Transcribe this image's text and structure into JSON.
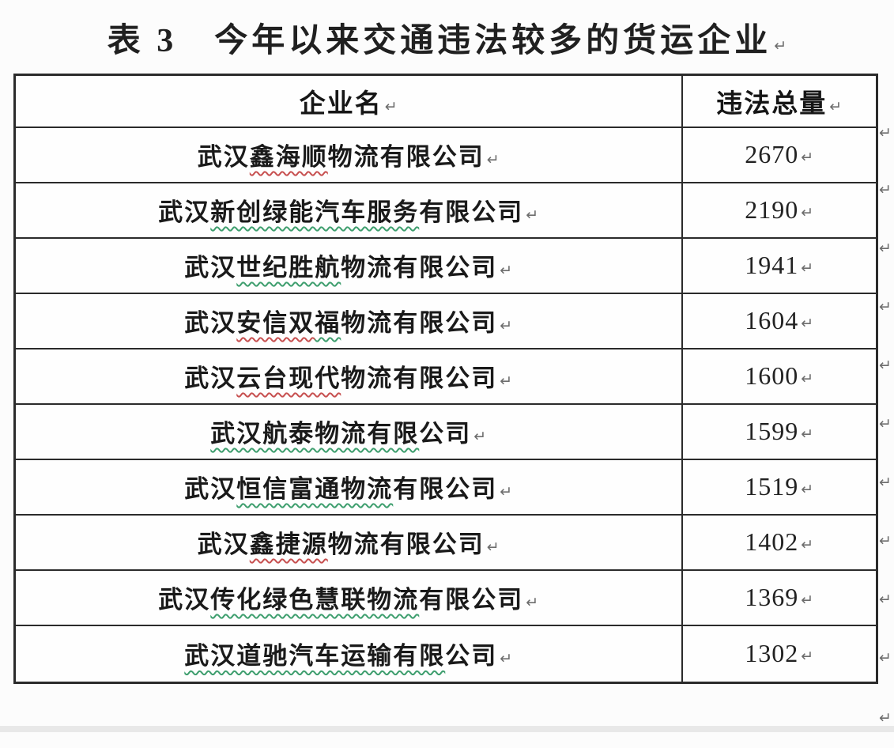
{
  "page": {
    "background": "#fcfcfc",
    "border_color": "#2b2b2b"
  },
  "marks": {
    "pilcrow": "↵",
    "color": "#6d6d6d"
  },
  "spellcheck_colors": {
    "red": "#c75050",
    "green": "#3e9e6e"
  },
  "title": {
    "label": "表 3　今年以来交通违法较多的货运企业"
  },
  "table": {
    "headers": [
      {
        "label": "企业名"
      },
      {
        "label": "违法总量"
      }
    ],
    "rows": [
      {
        "value": "2670",
        "name": "武汉鑫海顺物流有限公司",
        "name_segments": [
          {
            "text": "武汉",
            "wavy": null
          },
          {
            "text": "鑫海顺",
            "wavy": "#c75050"
          },
          {
            "text": "物流有限公司",
            "wavy": null
          }
        ]
      },
      {
        "value": "2190",
        "name": "武汉新创绿能汽车服务有限公司",
        "name_segments": [
          {
            "text": "武汉",
            "wavy": null
          },
          {
            "text": "新创绿能汽车服务",
            "wavy": "#3e9e6e"
          },
          {
            "text": "有限公司",
            "wavy": null
          }
        ]
      },
      {
        "value": "1941",
        "name": "武汉世纪胜航物流有限公司",
        "name_segments": [
          {
            "text": "武汉",
            "wavy": null
          },
          {
            "text": "世纪胜航",
            "wavy": "#3e9e6e"
          },
          {
            "text": "物流有限公司",
            "wavy": null
          }
        ]
      },
      {
        "value": "1604",
        "name": "武汉安信双福物流有限公司",
        "name_segments": [
          {
            "text": "武汉",
            "wavy": null
          },
          {
            "text": "安信双",
            "wavy": "#c75050"
          },
          {
            "text": "福",
            "wavy": "#3e9e6e"
          },
          {
            "text": "物流有限公司",
            "wavy": null
          }
        ]
      },
      {
        "value": "1600",
        "name": "武汉云台现代物流有限公司",
        "name_segments": [
          {
            "text": "武汉",
            "wavy": null
          },
          {
            "text": "云台现代",
            "wavy": "#c75050"
          },
          {
            "text": "物流有限公司",
            "wavy": null
          }
        ]
      },
      {
        "value": "1599",
        "name": "武汉航泰物流有限公司",
        "name_segments": [
          {
            "text": "武汉航泰物流有限",
            "wavy": "#3e9e6e"
          },
          {
            "text": "公司",
            "wavy": null
          }
        ]
      },
      {
        "value": "1519",
        "name": "武汉恒信富通物流有限公司",
        "name_segments": [
          {
            "text": "武汉",
            "wavy": null
          },
          {
            "text": "恒信富通物流",
            "wavy": "#3e9e6e"
          },
          {
            "text": "有限公司",
            "wavy": null
          }
        ]
      },
      {
        "value": "1402",
        "name": "武汉鑫捷源物流有限公司",
        "name_segments": [
          {
            "text": "武汉",
            "wavy": null
          },
          {
            "text": "鑫捷源",
            "wavy": "#c75050"
          },
          {
            "text": "物流有限公司",
            "wavy": null
          }
        ]
      },
      {
        "value": "1369",
        "name": "武汉传化绿色慧联物流有限公司",
        "name_segments": [
          {
            "text": "武汉",
            "wavy": null
          },
          {
            "text": "传化绿色慧联物流",
            "wavy": "#3e9e6e"
          },
          {
            "text": "有限公司",
            "wavy": null
          }
        ]
      },
      {
        "value": "1302",
        "name": "武汉道驰汽车运输有限公司",
        "name_segments": [
          {
            "text": "武汉道驰汽车运输有限",
            "wavy": "#3e9e6e"
          },
          {
            "text": "公司",
            "wavy": null
          }
        ]
      }
    ]
  }
}
